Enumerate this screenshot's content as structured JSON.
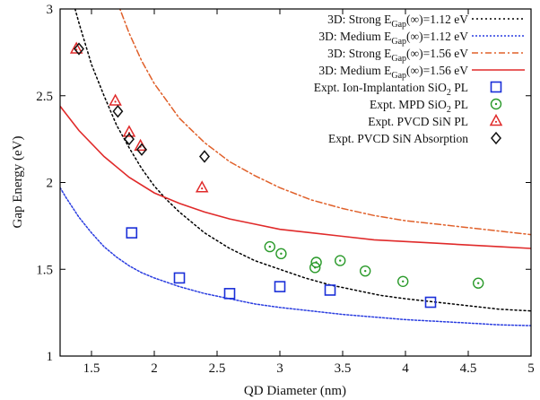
{
  "chart_data": {
    "type": "scatter",
    "title": "",
    "xlabel": "QD Diameter (nm)",
    "ylabel": "Gap Energy (eV)",
    "xlim": [
      1.25,
      5.0
    ],
    "ylim": [
      1.0,
      3.0
    ],
    "xticks": [
      1.5,
      2,
      2.5,
      3,
      3.5,
      4,
      4.5,
      5
    ],
    "xtick_labels": [
      "1.5",
      "2",
      "2.5",
      "3",
      "3.5",
      "4",
      "4.5",
      "5"
    ],
    "yticks": [
      1,
      1.5,
      2,
      2.5,
      3
    ],
    "ytick_labels": [
      "1",
      "1.5",
      "2",
      "2.5",
      "3"
    ],
    "grid": false,
    "legend_position": "top-right",
    "series": [
      {
        "name": "3D: Strong E_Gap(∞)=1.12 eV",
        "legend": {
          "prefix": "3D: Strong E",
          "sub": "Gap",
          "suffix": "(∞)=1.12 eV"
        },
        "kind": "line",
        "color": "#000000",
        "dash": "2,3",
        "stroke_width": 1.5,
        "x": [
          1.35,
          1.4,
          1.45,
          1.5,
          1.6,
          1.7,
          1.8,
          1.9,
          2.0,
          2.1,
          2.2,
          2.4,
          2.6,
          2.8,
          3.0,
          3.2,
          3.4,
          3.6,
          3.8,
          4.0,
          4.25,
          4.5,
          4.75,
          5.0
        ],
        "y": [
          3.05,
          2.92,
          2.8,
          2.68,
          2.5,
          2.33,
          2.2,
          2.08,
          1.98,
          1.9,
          1.83,
          1.71,
          1.62,
          1.55,
          1.5,
          1.45,
          1.41,
          1.38,
          1.35,
          1.33,
          1.31,
          1.29,
          1.27,
          1.26
        ]
      },
      {
        "name": "3D: Medium E_Gap(∞)=1.12 eV",
        "legend": {
          "prefix": "3D: Medium E",
          "sub": "Gap",
          "suffix": "(∞)=1.12 eV"
        },
        "kind": "line",
        "color": "#2a3de0",
        "dash": "2,2",
        "stroke_width": 1.5,
        "x": [
          1.25,
          1.3,
          1.4,
          1.5,
          1.6,
          1.7,
          1.8,
          1.9,
          2.0,
          2.2,
          2.4,
          2.6,
          2.8,
          3.0,
          3.25,
          3.5,
          3.75,
          4.0,
          4.25,
          4.5,
          4.75,
          5.0
        ],
        "y": [
          1.97,
          1.91,
          1.8,
          1.71,
          1.63,
          1.57,
          1.52,
          1.48,
          1.45,
          1.4,
          1.36,
          1.33,
          1.3,
          1.28,
          1.26,
          1.24,
          1.225,
          1.21,
          1.2,
          1.19,
          1.18,
          1.175
        ]
      },
      {
        "name": "3D: Strong E_Gap(∞)=1.56 eV",
        "legend": {
          "prefix": "3D: Strong E",
          "sub": "Gap",
          "suffix": "(∞)=1.56 eV"
        },
        "kind": "line",
        "color": "#e0602a",
        "dash": "7,3,2,3",
        "stroke_width": 1.5,
        "x": [
          1.7,
          1.8,
          1.9,
          2.0,
          2.2,
          2.4,
          2.6,
          2.8,
          3.0,
          3.25,
          3.5,
          3.75,
          4.0,
          4.25,
          4.5,
          4.75,
          5.0
        ],
        "y": [
          3.05,
          2.86,
          2.7,
          2.57,
          2.37,
          2.23,
          2.12,
          2.04,
          1.97,
          1.9,
          1.85,
          1.81,
          1.78,
          1.76,
          1.74,
          1.72,
          1.7
        ]
      },
      {
        "name": "3D: Medium E_Gap(∞)=1.56 eV",
        "legend": {
          "prefix": "3D: Medium E",
          "sub": "Gap",
          "suffix": "(∞)=1.56 eV"
        },
        "kind": "line",
        "color": "#e02a2a",
        "dash": "",
        "stroke_width": 1.6,
        "x": [
          1.25,
          1.4,
          1.6,
          1.8,
          2.0,
          2.2,
          2.4,
          2.6,
          2.8,
          3.0,
          3.25,
          3.5,
          3.75,
          4.0,
          4.25,
          4.5,
          4.75,
          5.0
        ],
        "y": [
          2.44,
          2.3,
          2.15,
          2.03,
          1.94,
          1.88,
          1.83,
          1.79,
          1.76,
          1.73,
          1.71,
          1.69,
          1.67,
          1.66,
          1.65,
          1.64,
          1.63,
          1.62
        ]
      },
      {
        "name": "Expt. Ion-Implantation SiO_2 PL",
        "legend": {
          "prefix": "Expt. Ion-Implantation SiO",
          "sub": "2",
          "suffix": " PL"
        },
        "kind": "scatter",
        "marker": "square",
        "color": "#1a2fd8",
        "x": [
          1.82,
          2.2,
          2.6,
          3.0,
          3.4,
          4.2
        ],
        "y": [
          1.71,
          1.45,
          1.36,
          1.4,
          1.38,
          1.31
        ]
      },
      {
        "name": "Expt. MPD SiO_2 PL",
        "legend": {
          "prefix": "Expt. MPD SiO",
          "sub": "2",
          "suffix": " PL"
        },
        "kind": "scatter",
        "marker": "circle",
        "color": "#2a9a2a",
        "x": [
          2.92,
          3.01,
          3.28,
          3.29,
          3.48,
          3.68,
          3.98,
          4.58
        ],
        "y": [
          1.63,
          1.59,
          1.51,
          1.54,
          1.55,
          1.49,
          1.43,
          1.42
        ]
      },
      {
        "name": "Expt. PVCD SiN PL",
        "legend": {
          "prefix": "Expt. PVCD SiN PL",
          "sub": "",
          "suffix": ""
        },
        "kind": "scatter",
        "marker": "triangle",
        "color": "#e02a2a",
        "x": [
          1.38,
          1.69,
          1.8,
          1.89,
          2.38
        ],
        "y": [
          2.77,
          2.47,
          2.29,
          2.21,
          1.97
        ]
      },
      {
        "name": "Expt. PVCD SiN Absorption",
        "legend": {
          "prefix": "Expt. PVCD SiN Absorption",
          "sub": "",
          "suffix": ""
        },
        "kind": "scatter",
        "marker": "diamond",
        "color": "#111111",
        "x": [
          1.4,
          1.71,
          1.8,
          1.9,
          2.4
        ],
        "y": [
          2.77,
          2.41,
          2.25,
          2.19,
          2.15
        ]
      }
    ]
  }
}
